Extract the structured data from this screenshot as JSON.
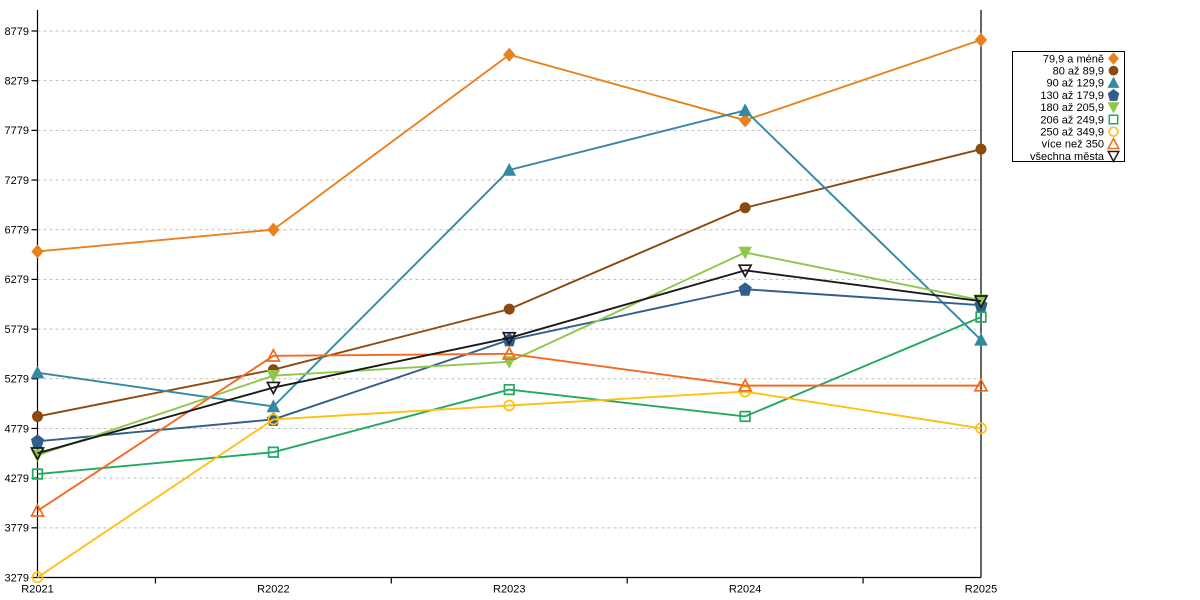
{
  "chart_data": {
    "type": "line",
    "title": "",
    "x_labels": [
      "R2021",
      "R2022",
      "R2023",
      "R2024",
      "R2025"
    ],
    "y_ticks": [
      8779,
      8279,
      7779,
      7279,
      6779,
      6279,
      5779,
      5279,
      4779,
      4279,
      3779,
      3279
    ],
    "ylim": [
      3279,
      8779
    ],
    "grid": "horizontal-dashed",
    "grid_color": "#BFBFBF",
    "axis_color": "#000000",
    "legend_position": "right",
    "series": [
      {
        "name": "79,9 a méně",
        "color": "#E8821F",
        "marker": "diamond",
        "fill": true,
        "values": [
          6560,
          6780,
          8540,
          7880,
          8690
        ]
      },
      {
        "name": "80 až 89,9",
        "color": "#8B4A0E",
        "marker": "circle",
        "fill": true,
        "values": [
          4900,
          5370,
          5980,
          7000,
          7590
        ]
      },
      {
        "name": "90 až 129,9",
        "color": "#3389A3",
        "marker": "triangle-up",
        "fill": true,
        "values": [
          5340,
          5000,
          7380,
          7980,
          5670
        ]
      },
      {
        "name": "130 až 179,9",
        "color": "#315F8C",
        "marker": "pentagon",
        "fill": true,
        "values": [
          4650,
          4870,
          5670,
          6180,
          6020
        ]
      },
      {
        "name": "180 až 205,9",
        "color": "#8FC74A",
        "marker": "triangle-down",
        "fill": true,
        "values": [
          4510,
          5310,
          5450,
          6550,
          6070
        ]
      },
      {
        "name": "206 až 249,9",
        "color": "#23A863",
        "marker": "square",
        "fill": false,
        "values": [
          4320,
          4540,
          5170,
          4900,
          5900
        ]
      },
      {
        "name": "250 až 349,9",
        "color": "#FFC110",
        "marker": "circle",
        "fill": false,
        "values": [
          3280,
          4870,
          5010,
          5150,
          4780
        ]
      },
      {
        "name": "více než 350",
        "color": "#F26A21",
        "marker": "triangle-up",
        "fill": false,
        "values": [
          3950,
          5510,
          5530,
          5210,
          5210
        ]
      },
      {
        "name": "všechna města",
        "color": "#1A1A1A",
        "marker": "triangle-down",
        "fill": false,
        "values": [
          4530,
          5190,
          5690,
          6370,
          6060
        ]
      }
    ]
  }
}
